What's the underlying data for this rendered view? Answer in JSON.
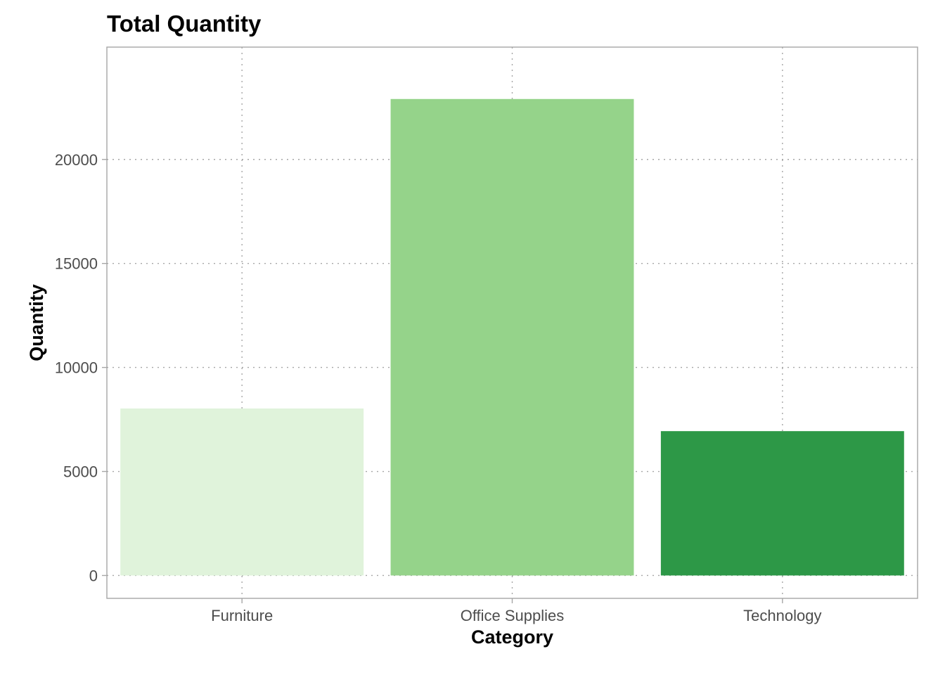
{
  "chart_data": {
    "type": "bar",
    "title": "Total Quantity",
    "xlabel": "Category",
    "ylabel": "Quantity",
    "categories": [
      "Furniture",
      "Office Supplies",
      "Technology"
    ],
    "values": [
      8028,
      22906,
      6939
    ],
    "colors": [
      "#e0f3db",
      "#95d38a",
      "#2d9847"
    ],
    "ylim": [
      -1100,
      25400
    ],
    "yticks": [
      0,
      5000,
      10000,
      15000,
      20000
    ],
    "ytick_labels": [
      "0",
      "5000",
      "10000",
      "15000",
      "20000"
    ],
    "grid": true,
    "legend": "none"
  }
}
